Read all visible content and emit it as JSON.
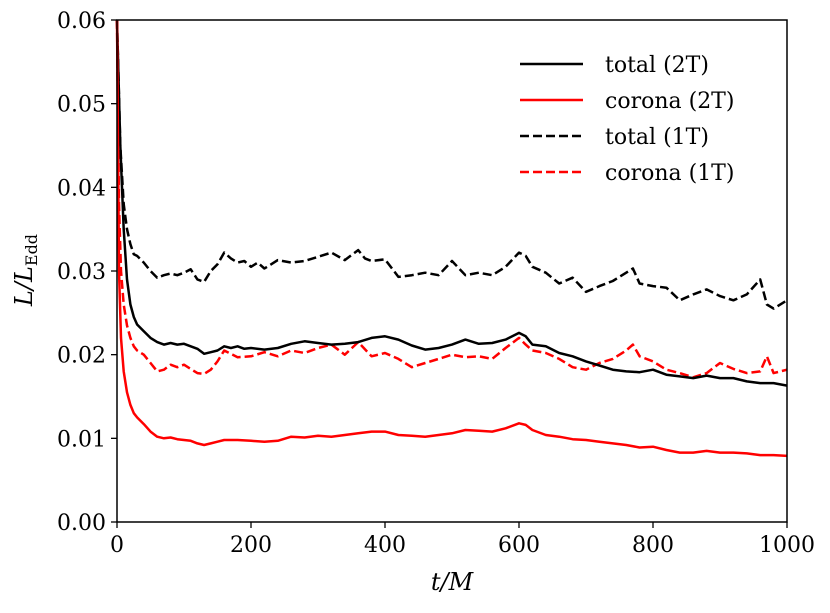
{
  "chart_data": {
    "type": "line",
    "title": "",
    "xlabel": "t/M",
    "ylabel": "L/L_Edd",
    "ylabel_main": "L/L",
    "ylabel_sub": "Edd",
    "xlim": [
      0,
      1000
    ],
    "ylim": [
      0,
      0.06
    ],
    "xticks": [
      0,
      200,
      400,
      600,
      800,
      1000
    ],
    "xtick_labels": [
      "0",
      "200",
      "400",
      "600",
      "800",
      "1000"
    ],
    "yticks": [
      0,
      0.01,
      0.02,
      0.03,
      0.04,
      0.05,
      0.06
    ],
    "ytick_labels": [
      "0.00",
      "0.01",
      "0.02",
      "0.03",
      "0.04",
      "0.05",
      "0.06"
    ],
    "grid": false,
    "legend_position": "top-right",
    "series": [
      {
        "name": "total (2T)",
        "color": "#000000",
        "dash": "solid",
        "x": [
          0,
          5,
          10,
          15,
          20,
          25,
          30,
          40,
          50,
          60,
          70,
          80,
          90,
          100,
          110,
          120,
          130,
          140,
          150,
          160,
          170,
          180,
          190,
          200,
          220,
          240,
          260,
          280,
          300,
          320,
          340,
          360,
          380,
          400,
          420,
          440,
          460,
          480,
          500,
          520,
          540,
          560,
          580,
          600,
          610,
          620,
          640,
          660,
          680,
          700,
          720,
          740,
          760,
          780,
          800,
          820,
          840,
          860,
          880,
          900,
          920,
          940,
          960,
          980,
          1000
        ],
        "values": [
          0.06,
          0.045,
          0.035,
          0.029,
          0.026,
          0.0245,
          0.0236,
          0.0228,
          0.022,
          0.0215,
          0.0212,
          0.0214,
          0.0212,
          0.0213,
          0.021,
          0.0207,
          0.0201,
          0.0203,
          0.0205,
          0.021,
          0.0208,
          0.021,
          0.0207,
          0.0208,
          0.0206,
          0.0208,
          0.0213,
          0.0216,
          0.0214,
          0.0212,
          0.0213,
          0.0215,
          0.022,
          0.0222,
          0.0218,
          0.0211,
          0.0206,
          0.0208,
          0.0212,
          0.0218,
          0.0213,
          0.0214,
          0.0218,
          0.0226,
          0.0222,
          0.0212,
          0.021,
          0.0202,
          0.0198,
          0.0192,
          0.0187,
          0.0182,
          0.018,
          0.0179,
          0.0182,
          0.0176,
          0.0174,
          0.0172,
          0.0175,
          0.0172,
          0.0172,
          0.0168,
          0.0166,
          0.0166,
          0.0163
        ]
      },
      {
        "name": "corona (2T)",
        "color": "#ff0000",
        "dash": "solid",
        "x": [
          0,
          3,
          6,
          10,
          15,
          20,
          25,
          30,
          40,
          50,
          60,
          70,
          80,
          90,
          100,
          110,
          120,
          130,
          140,
          150,
          160,
          180,
          200,
          220,
          240,
          260,
          280,
          300,
          320,
          340,
          360,
          380,
          400,
          420,
          440,
          460,
          480,
          500,
          520,
          540,
          560,
          580,
          600,
          610,
          620,
          640,
          660,
          680,
          700,
          720,
          740,
          760,
          780,
          800,
          820,
          840,
          860,
          880,
          900,
          920,
          940,
          960,
          980,
          1000
        ],
        "values": [
          0.06,
          0.03,
          0.022,
          0.018,
          0.0155,
          0.014,
          0.013,
          0.0125,
          0.0117,
          0.0108,
          0.0102,
          0.01,
          0.0101,
          0.0099,
          0.0098,
          0.0097,
          0.0094,
          0.0092,
          0.0094,
          0.0096,
          0.0098,
          0.0098,
          0.0097,
          0.0096,
          0.0097,
          0.0102,
          0.0101,
          0.0103,
          0.0102,
          0.0104,
          0.0106,
          0.0108,
          0.0108,
          0.0104,
          0.0103,
          0.0102,
          0.0104,
          0.0106,
          0.011,
          0.0109,
          0.0108,
          0.0112,
          0.0118,
          0.0116,
          0.011,
          0.0104,
          0.0102,
          0.0099,
          0.0098,
          0.0096,
          0.0094,
          0.0092,
          0.0089,
          0.009,
          0.0086,
          0.0083,
          0.0083,
          0.0085,
          0.0083,
          0.0083,
          0.0082,
          0.008,
          0.008,
          0.0079
        ]
      },
      {
        "name": "total (1T)",
        "color": "#000000",
        "dash": "dashed",
        "x": [
          0,
          5,
          10,
          15,
          20,
          25,
          30,
          40,
          50,
          60,
          70,
          80,
          90,
          100,
          110,
          120,
          130,
          140,
          150,
          160,
          170,
          180,
          190,
          200,
          210,
          220,
          240,
          260,
          280,
          300,
          320,
          340,
          360,
          370,
          380,
          400,
          420,
          440,
          460,
          480,
          500,
          520,
          540,
          560,
          580,
          600,
          610,
          620,
          640,
          660,
          680,
          700,
          720,
          740,
          760,
          770,
          780,
          800,
          820,
          840,
          860,
          880,
          900,
          920,
          940,
          960,
          970,
          980,
          1000
        ],
        "values": [
          0.06,
          0.045,
          0.038,
          0.035,
          0.0332,
          0.032,
          0.0318,
          0.031,
          0.03,
          0.0292,
          0.0295,
          0.0297,
          0.0295,
          0.0298,
          0.0302,
          0.029,
          0.0287,
          0.03,
          0.0308,
          0.0322,
          0.0315,
          0.031,
          0.0312,
          0.0305,
          0.031,
          0.0303,
          0.0313,
          0.031,
          0.0312,
          0.0317,
          0.0322,
          0.0313,
          0.0325,
          0.0315,
          0.0312,
          0.0314,
          0.0293,
          0.0295,
          0.0298,
          0.0295,
          0.0312,
          0.0295,
          0.0298,
          0.0295,
          0.0305,
          0.0322,
          0.0318,
          0.0305,
          0.0298,
          0.0285,
          0.0292,
          0.0275,
          0.0282,
          0.0288,
          0.0298,
          0.0303,
          0.0285,
          0.0282,
          0.028,
          0.0265,
          0.0272,
          0.0278,
          0.027,
          0.0265,
          0.0272,
          0.029,
          0.026,
          0.0255,
          0.0265
        ]
      },
      {
        "name": "corona (1T)",
        "color": "#ff0000",
        "dash": "dashed",
        "x": [
          0,
          3,
          6,
          10,
          15,
          20,
          25,
          30,
          40,
          50,
          60,
          70,
          80,
          90,
          100,
          110,
          120,
          130,
          140,
          150,
          160,
          180,
          200,
          220,
          240,
          260,
          280,
          300,
          320,
          340,
          360,
          380,
          400,
          420,
          440,
          460,
          480,
          500,
          520,
          540,
          560,
          580,
          600,
          610,
          620,
          640,
          660,
          680,
          700,
          720,
          740,
          760,
          770,
          780,
          800,
          820,
          840,
          860,
          880,
          900,
          920,
          940,
          960,
          970,
          980,
          1000
        ],
        "values": [
          0.06,
          0.038,
          0.03,
          0.026,
          0.0235,
          0.022,
          0.021,
          0.0205,
          0.02,
          0.019,
          0.018,
          0.0182,
          0.0188,
          0.0185,
          0.0188,
          0.0183,
          0.0178,
          0.0177,
          0.0182,
          0.0192,
          0.0205,
          0.0197,
          0.0198,
          0.0203,
          0.0198,
          0.0205,
          0.0202,
          0.0208,
          0.0212,
          0.02,
          0.0215,
          0.0198,
          0.0202,
          0.0195,
          0.0185,
          0.019,
          0.0195,
          0.02,
          0.0197,
          0.0198,
          0.0195,
          0.0208,
          0.022,
          0.0212,
          0.0205,
          0.0202,
          0.0195,
          0.0185,
          0.0182,
          0.019,
          0.0195,
          0.0205,
          0.0212,
          0.0198,
          0.0192,
          0.0182,
          0.0178,
          0.0173,
          0.0178,
          0.019,
          0.0183,
          0.0178,
          0.018,
          0.0198,
          0.0178,
          0.0182
        ]
      }
    ]
  }
}
